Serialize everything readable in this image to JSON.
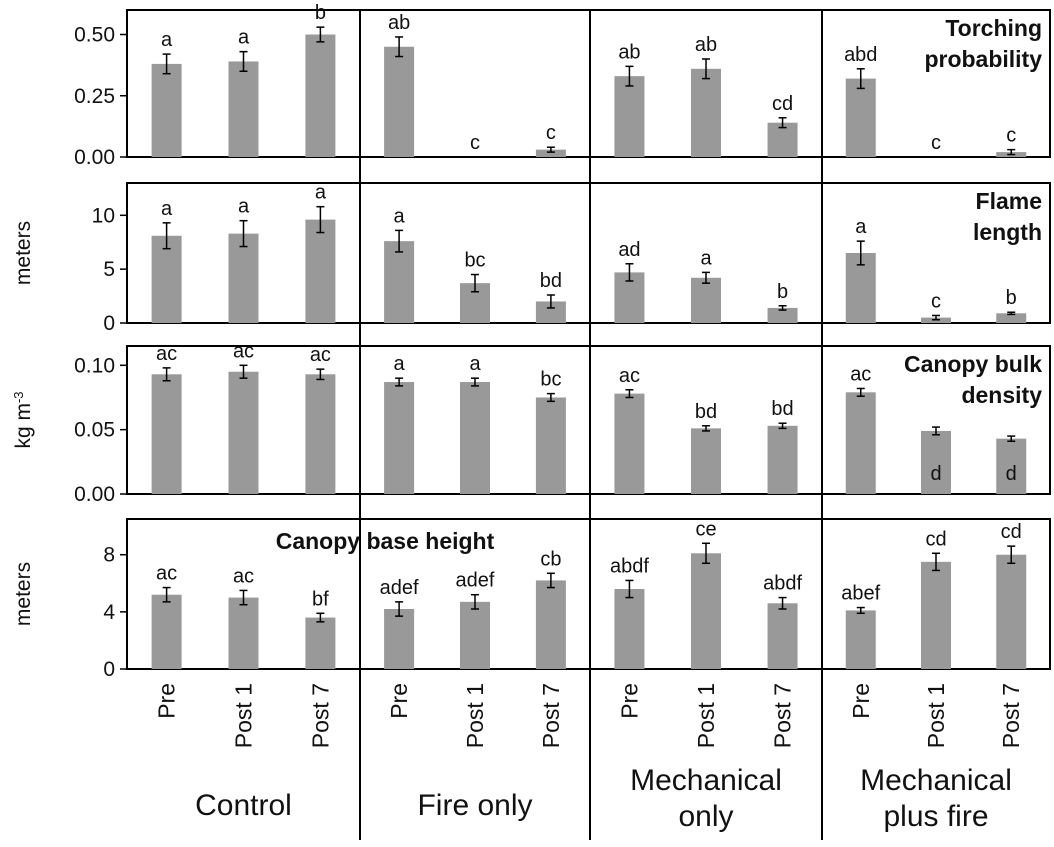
{
  "chart_data": {
    "type": "bar",
    "groups": [
      "Control",
      "Fire only",
      "Mechanical only",
      "Mechanical plus fire"
    ],
    "group_label_lines": [
      [
        "Control"
      ],
      [
        "Fire only"
      ],
      [
        "Mechanical",
        "only"
      ],
      [
        "Mechanical",
        "plus fire"
      ]
    ],
    "categories": [
      "Pre",
      "Post 1",
      "Post 7"
    ],
    "bar_color": "#999999",
    "panels": [
      {
        "title_lines": [
          "Torching",
          "probability"
        ],
        "title_position": "top-right",
        "ylabel": "",
        "ylim": [
          0,
          0.6
        ],
        "yticks": [
          0,
          0.25,
          0.5
        ],
        "ytick_labels": [
          "0.00",
          "0.25",
          "0.50"
        ],
        "values": [
          [
            0.38,
            0.39,
            0.5
          ],
          [
            0.45,
            0,
            0.03
          ],
          [
            0.33,
            0.36,
            0.14
          ],
          [
            0.32,
            0,
            0.02
          ]
        ],
        "errors": [
          [
            0.04,
            0.04,
            0.03
          ],
          [
            0.04,
            0,
            0.01
          ],
          [
            0.04,
            0.04,
            0.02
          ],
          [
            0.04,
            0,
            0.01
          ]
        ],
        "labels": [
          [
            "a",
            "a",
            "b"
          ],
          [
            "ab",
            "c",
            "c"
          ],
          [
            "ab",
            "ab",
            "cd"
          ],
          [
            "abd",
            "c",
            "c"
          ]
        ]
      },
      {
        "title_lines": [
          "Flame",
          "length"
        ],
        "title_position": "top-right",
        "ylabel": "meters",
        "ylim": [
          0,
          13
        ],
        "yticks": [
          0,
          5,
          10
        ],
        "ytick_labels": [
          "0",
          "5",
          "10"
        ],
        "values": [
          [
            8.1,
            8.3,
            9.6
          ],
          [
            7.6,
            3.7,
            2.0
          ],
          [
            4.7,
            4.2,
            1.4
          ],
          [
            6.5,
            0.5,
            0.9
          ]
        ],
        "errors": [
          [
            1.2,
            1.2,
            1.2
          ],
          [
            1.0,
            0.8,
            0.6
          ],
          [
            0.8,
            0.5,
            0.2
          ],
          [
            1.1,
            0.2,
            0.1
          ]
        ],
        "labels": [
          [
            "a",
            "a",
            "a"
          ],
          [
            "a",
            "bc",
            "bd"
          ],
          [
            "ad",
            "a",
            "b"
          ],
          [
            "a",
            "c",
            "b"
          ]
        ]
      },
      {
        "title_lines": [
          "Canopy bulk",
          "density"
        ],
        "title_position": "top-right",
        "ylabel": "kg m",
        "ylabel_sup": "-3",
        "ylim": [
          0,
          0.115
        ],
        "yticks": [
          0,
          0.05,
          0.1
        ],
        "ytick_labels": [
          "0.00",
          "0.05",
          "0.10"
        ],
        "values": [
          [
            0.093,
            0.095,
            0.093
          ],
          [
            0.087,
            0.087,
            0.075
          ],
          [
            0.078,
            0.051,
            0.053
          ],
          [
            0.079,
            0.049,
            0.043
          ]
        ],
        "errors": [
          [
            0.005,
            0.005,
            0.004
          ],
          [
            0.003,
            0.003,
            0.003
          ],
          [
            0.003,
            0.002,
            0.002
          ],
          [
            0.003,
            0.003,
            0.002
          ]
        ],
        "labels": [
          [
            "ac",
            "ac",
            "ac"
          ],
          [
            "a",
            "a",
            "bc"
          ],
          [
            "ac",
            "bd",
            "bd"
          ],
          [
            "ac",
            "d",
            "d"
          ]
        ],
        "labels_inside": [
          [
            false,
            false,
            false
          ],
          [
            false,
            false,
            false
          ],
          [
            false,
            false,
            false
          ],
          [
            false,
            true,
            true
          ]
        ]
      },
      {
        "title_lines": [
          "Canopy base height"
        ],
        "title_position": "top-center",
        "ylabel": "meters",
        "ylim": [
          0,
          10.5
        ],
        "yticks": [
          0,
          4,
          8
        ],
        "ytick_labels": [
          "0",
          "4",
          "8"
        ],
        "values": [
          [
            5.2,
            5.0,
            3.6
          ],
          [
            4.2,
            4.7,
            6.2
          ],
          [
            5.6,
            8.1,
            4.6
          ],
          [
            4.1,
            7.5,
            8.0
          ]
        ],
        "errors": [
          [
            0.5,
            0.5,
            0.3
          ],
          [
            0.5,
            0.5,
            0.5
          ],
          [
            0.6,
            0.7,
            0.4
          ],
          [
            0.2,
            0.6,
            0.6
          ]
        ],
        "labels": [
          [
            "ac",
            "ac",
            "bf"
          ],
          [
            "adef",
            "adef",
            "cb"
          ],
          [
            "abdf",
            "ce",
            "abdf"
          ],
          [
            "abef",
            "cd",
            "cd"
          ]
        ]
      }
    ]
  }
}
